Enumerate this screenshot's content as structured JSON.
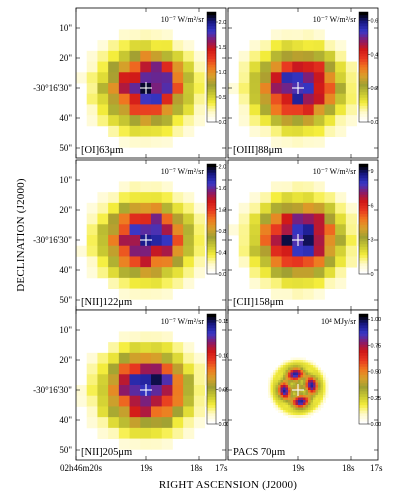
{
  "figure": {
    "x_axis_title": "RIGHT ASCENSION (J2000)",
    "y_axis_title": "DECLINATION (J2000)",
    "ra_ticks": [
      "02h46m20s",
      "19s",
      "18s",
      "17s"
    ],
    "dec_ticks": [
      "10\"",
      "20\"",
      "-30°16'30\"",
      "40\"",
      "50\""
    ],
    "panels": [
      {
        "line": "[OI]63μm",
        "units": "10^-7 W/m^2/sr",
        "colorbar_ticks": [
          "0.0",
          "0.5",
          "1.0",
          "1.5",
          "2.0"
        ],
        "vmax": 2.2,
        "peak": 1.95,
        "style": "blob"
      },
      {
        "line": "[OIII]88μm",
        "units": "10^-7 W/m^2/sr",
        "colorbar_ticks": [
          "0.0",
          "0.2",
          "0.4",
          "0.6"
        ],
        "vmax": 0.65,
        "peak": 0.58,
        "style": "blob"
      },
      {
        "line": "[NII]122μm",
        "units": "10^-7 W/m^2/sr",
        "colorbar_ticks": [
          "0.0",
          "0.4",
          "0.8",
          "1.2",
          "1.6",
          "2.0"
        ],
        "vmax": 2.05,
        "peak": 1.85,
        "style": "blob"
      },
      {
        "line": "[CII]158μm",
        "units": "10^-7 W/m^2/sr",
        "colorbar_ticks": [
          "0",
          "3",
          "6",
          "9"
        ],
        "vmax": 9.6,
        "peak": 8.8,
        "style": "blob"
      },
      {
        "line": "[NII]205μm",
        "units": "10^-7 W/m^2/sr",
        "colorbar_ticks": [
          "0.00",
          "0.05",
          "0.10",
          "0.15"
        ],
        "vmax": 0.16,
        "peak": 0.145,
        "style": "blob"
      },
      {
        "line": "PACS 70μm",
        "units": "10^4 MJy/sr",
        "colorbar_ticks": [
          "0.00",
          "0.25",
          "0.50",
          "0.75",
          "1.00"
        ],
        "vmax": 1.05,
        "peak": 0.95,
        "style": "ring"
      }
    ],
    "colormap": [
      "#ffffff",
      "#fffac8",
      "#f5ee3c",
      "#c8c832",
      "#a0a032",
      "#d8a02a",
      "#f07820",
      "#e83820",
      "#d01818",
      "#8a1a6a",
      "#3838c8",
      "#1a1a8a",
      "#000000"
    ]
  }
}
